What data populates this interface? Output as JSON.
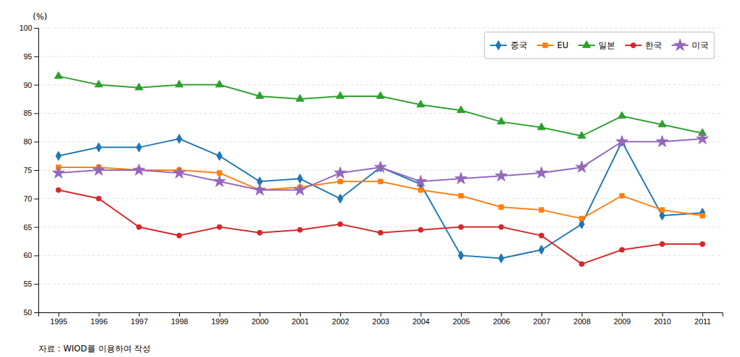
{
  "chart_data": {
    "type": "line",
    "ylabel": "(%)",
    "annotations": [
      "자료 :  WIOD를 이용하여 작성"
    ],
    "x": [
      1995,
      1996,
      1997,
      1998,
      1999,
      2000,
      2001,
      2002,
      2003,
      2004,
      2005,
      2006,
      2007,
      2008,
      2009,
      2010,
      2011
    ],
    "xlim": [
      1994.5,
      2011.5
    ],
    "xticks": [
      1995,
      1996,
      1997,
      1998,
      1999,
      2000,
      2001,
      2002,
      2003,
      2004,
      2005,
      2006,
      2007,
      2008,
      2009,
      2010,
      2011
    ],
    "ylim": [
      50,
      100
    ],
    "yticks": [
      50,
      55,
      60,
      65,
      70,
      75,
      80,
      85,
      90,
      95,
      100
    ],
    "grid": true,
    "legend": "upper right",
    "series": [
      {
        "name": "중국",
        "marker": "diamond",
        "values": [
          77.5,
          79.0,
          79.0,
          80.5,
          77.5,
          73.0,
          73.5,
          70.0,
          75.5,
          72.5,
          60.0,
          59.5,
          61.0,
          65.5,
          80.0,
          67.0,
          67.5
        ]
      },
      {
        "name": "EU",
        "marker": "square",
        "values": [
          75.5,
          75.5,
          75.0,
          75.0,
          74.5,
          71.5,
          72.0,
          73.0,
          73.0,
          71.5,
          70.5,
          68.5,
          68.0,
          66.5,
          70.5,
          68.0,
          67.0
        ]
      },
      {
        "name": "일본",
        "marker": "triangle",
        "values": [
          91.5,
          90.0,
          89.5,
          90.0,
          90.0,
          88.0,
          87.5,
          88.0,
          88.0,
          86.5,
          85.5,
          83.5,
          82.5,
          81.0,
          84.5,
          83.0,
          81.5
        ]
      },
      {
        "name": "한국",
        "marker": "circle",
        "values": [
          71.5,
          70.0,
          65.0,
          63.5,
          65.0,
          64.0,
          64.5,
          65.5,
          64.0,
          64.5,
          65.0,
          65.0,
          63.5,
          58.5,
          61.0,
          62.0,
          62.0
        ]
      },
      {
        "name": "미국",
        "marker": "star",
        "values": [
          74.5,
          75.0,
          75.0,
          74.5,
          73.0,
          71.5,
          71.5,
          74.5,
          75.5,
          73.0,
          73.5,
          74.0,
          74.5,
          75.5,
          80.0,
          80.0,
          80.5
        ]
      }
    ]
  }
}
